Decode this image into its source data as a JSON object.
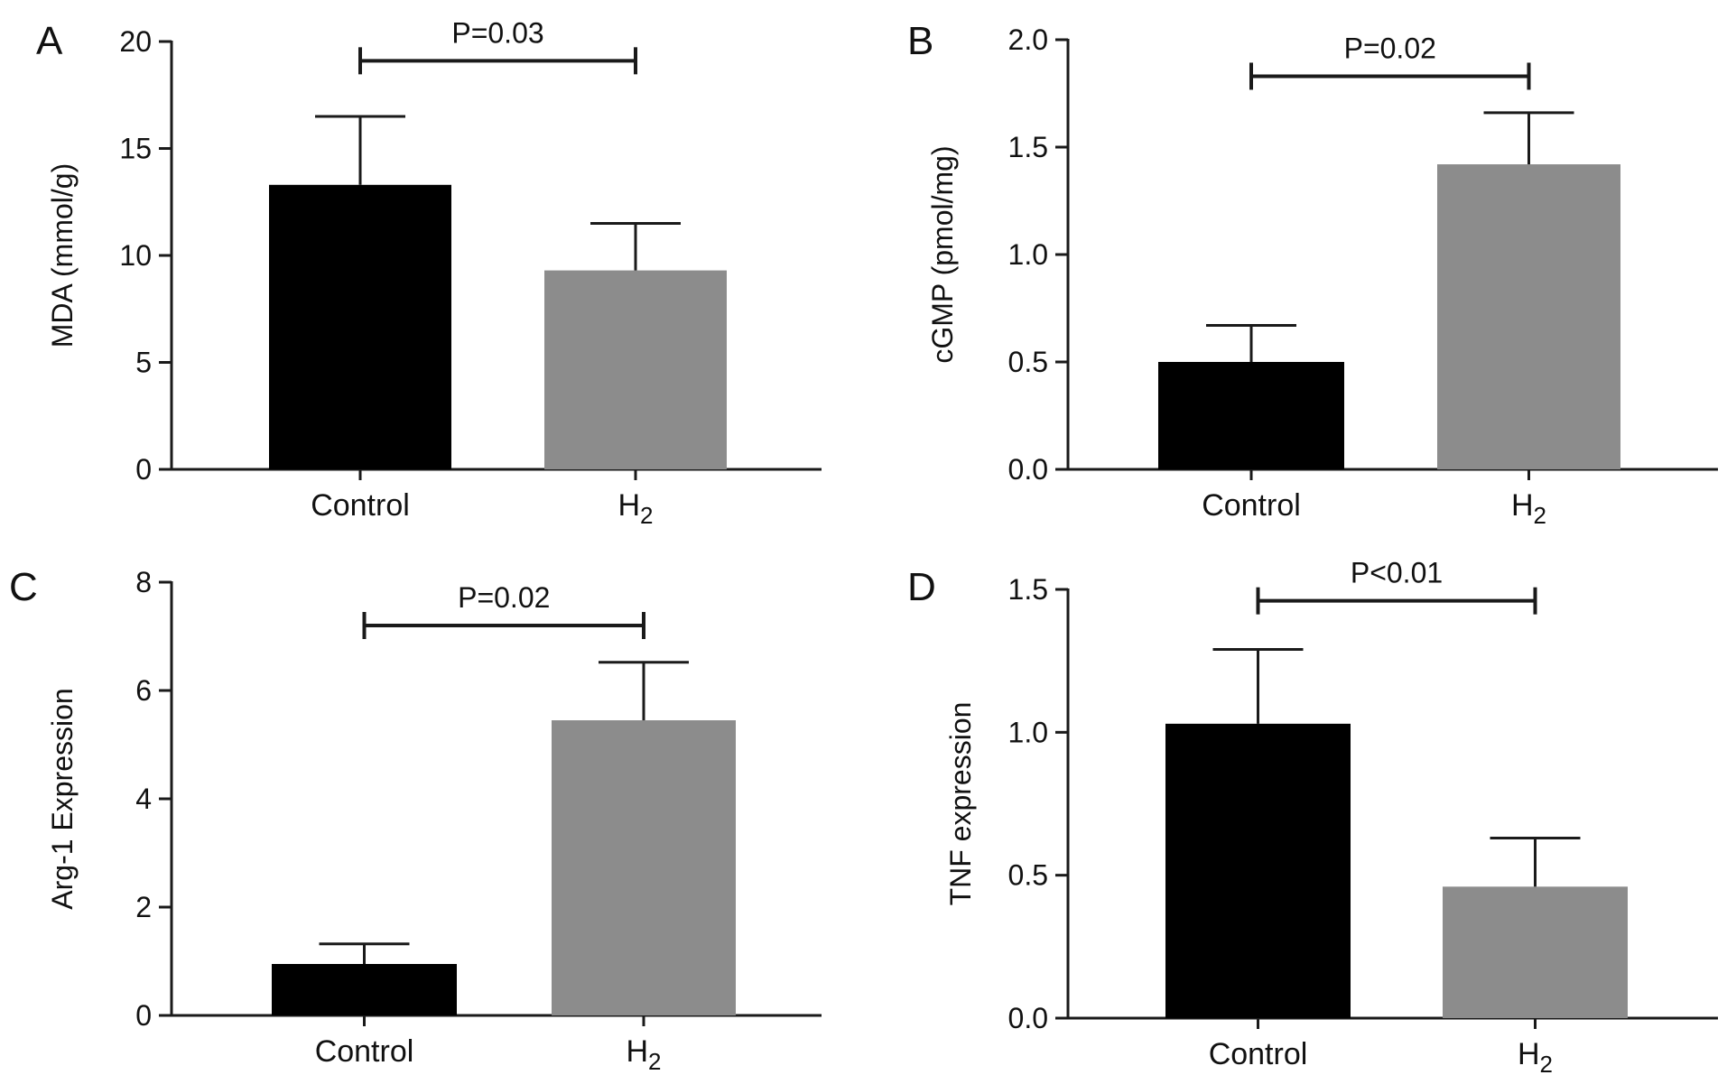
{
  "colors": {
    "control_bar": "#000000",
    "h2_bar": "#8c8c8c",
    "axis": "#1a1a1a"
  },
  "chart_data": [
    {
      "panel": "A",
      "type": "bar",
      "ylabel": "MDA (mmol/g)",
      "categories": [
        "Control",
        "H2"
      ],
      "category_labels": [
        {
          "base": "Control",
          "sub": ""
        },
        {
          "base": "H",
          "sub": "2"
        }
      ],
      "values": [
        13.3,
        9.3
      ],
      "errors": [
        3.2,
        2.2
      ],
      "ylim": [
        0,
        20
      ],
      "yticks": [
        0,
        5,
        10,
        15,
        20
      ],
      "ytick_labels": [
        "0",
        "5",
        "10",
        "15",
        "20"
      ],
      "significance": {
        "text": "P=0.03",
        "value": 19.1
      },
      "legend": false,
      "grid": false
    },
    {
      "panel": "B",
      "type": "bar",
      "ylabel": "cGMP (pmol/mg)",
      "categories": [
        "Control",
        "H2"
      ],
      "category_labels": [
        {
          "base": "Control",
          "sub": ""
        },
        {
          "base": "H",
          "sub": "2"
        }
      ],
      "values": [
        0.5,
        1.42
      ],
      "errors": [
        0.17,
        0.24
      ],
      "ylim": [
        0,
        2.0
      ],
      "yticks": [
        0,
        0.5,
        1.0,
        1.5,
        2.0
      ],
      "ytick_labels": [
        "0.0",
        "0.5",
        "1.0",
        "1.5",
        "2.0"
      ],
      "significance": {
        "text": "P=0.02",
        "value": 1.83
      },
      "legend": false,
      "grid": false
    },
    {
      "panel": "C",
      "type": "bar",
      "ylabel": "Arg-1 Expression",
      "categories": [
        "Control",
        "H2"
      ],
      "category_labels": [
        {
          "base": "Control",
          "sub": ""
        },
        {
          "base": "H",
          "sub": "2"
        }
      ],
      "values": [
        0.95,
        5.45
      ],
      "errors": [
        0.37,
        1.07
      ],
      "ylim": [
        0,
        8
      ],
      "yticks": [
        0,
        2,
        4,
        6,
        8
      ],
      "ytick_labels": [
        "0",
        "2",
        "4",
        "6",
        "8"
      ],
      "significance": {
        "text": "P=0.02",
        "value": 7.2
      },
      "legend": false,
      "grid": false
    },
    {
      "panel": "D",
      "type": "bar",
      "ylabel": "TNF expression",
      "categories": [
        "Control",
        "H2"
      ],
      "category_labels": [
        {
          "base": "Control",
          "sub": ""
        },
        {
          "base": "H",
          "sub": "2"
        }
      ],
      "values": [
        1.03,
        0.46
      ],
      "errors": [
        0.26,
        0.17
      ],
      "ylim": [
        0,
        1.5
      ],
      "yticks": [
        0,
        0.5,
        1.0,
        1.5
      ],
      "ytick_labels": [
        "0.0",
        "0.5",
        "1.0",
        "1.5"
      ],
      "significance": {
        "text": "P<0.01",
        "value": 1.46
      },
      "legend": false,
      "grid": false
    }
  ]
}
